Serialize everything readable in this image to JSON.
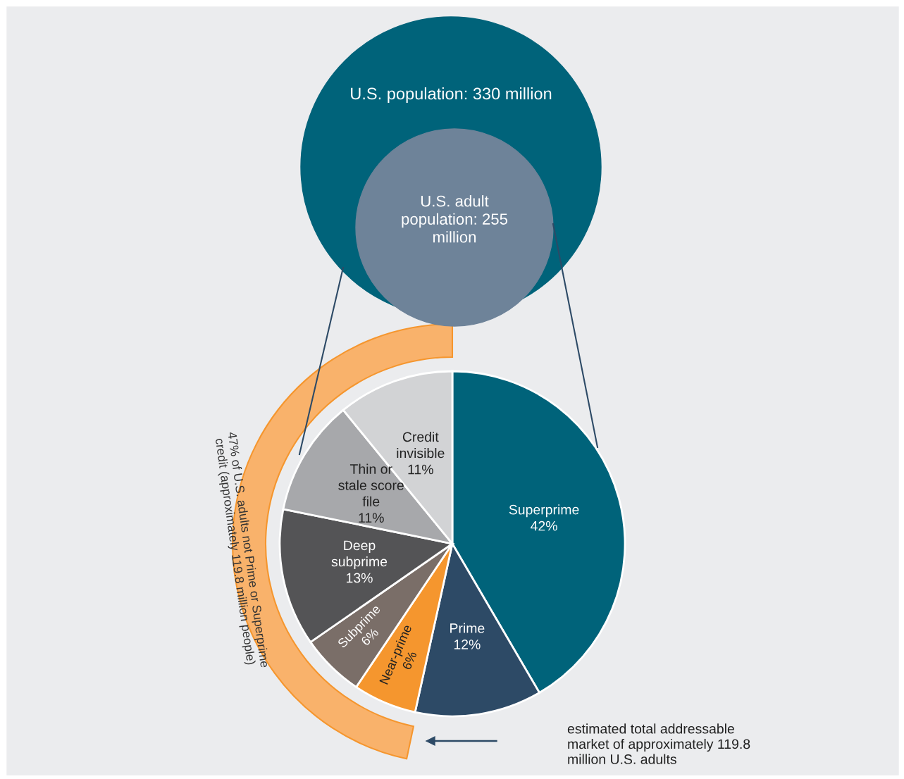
{
  "chart_data": {
    "type": "pie",
    "categories": [
      "Superprime",
      "Prime",
      "Near-prime",
      "Subprime",
      "Deep subprime",
      "Thin or stale score file",
      "Credit invisible"
    ],
    "values": [
      42,
      12,
      6,
      6,
      13,
      11,
      11
    ],
    "value_labels": [
      "42%",
      "12%",
      "6%",
      "6%",
      "13%",
      "11%",
      "11%"
    ],
    "colors": [
      "#00637a",
      "#2d4a66",
      "#f5962e",
      "#7a6e68",
      "#545456",
      "#a7a8ab",
      "#d2d3d5"
    ],
    "annotations": [
      "U.S. population: 330 million",
      "U.S. adult population: 255 million",
      "47% of U.S. adults not Prime or Superprime credit (approximately 119.8 million people)",
      "estimated total addressable market of approximately 119.8 million U.S. adults"
    ]
  }
}
